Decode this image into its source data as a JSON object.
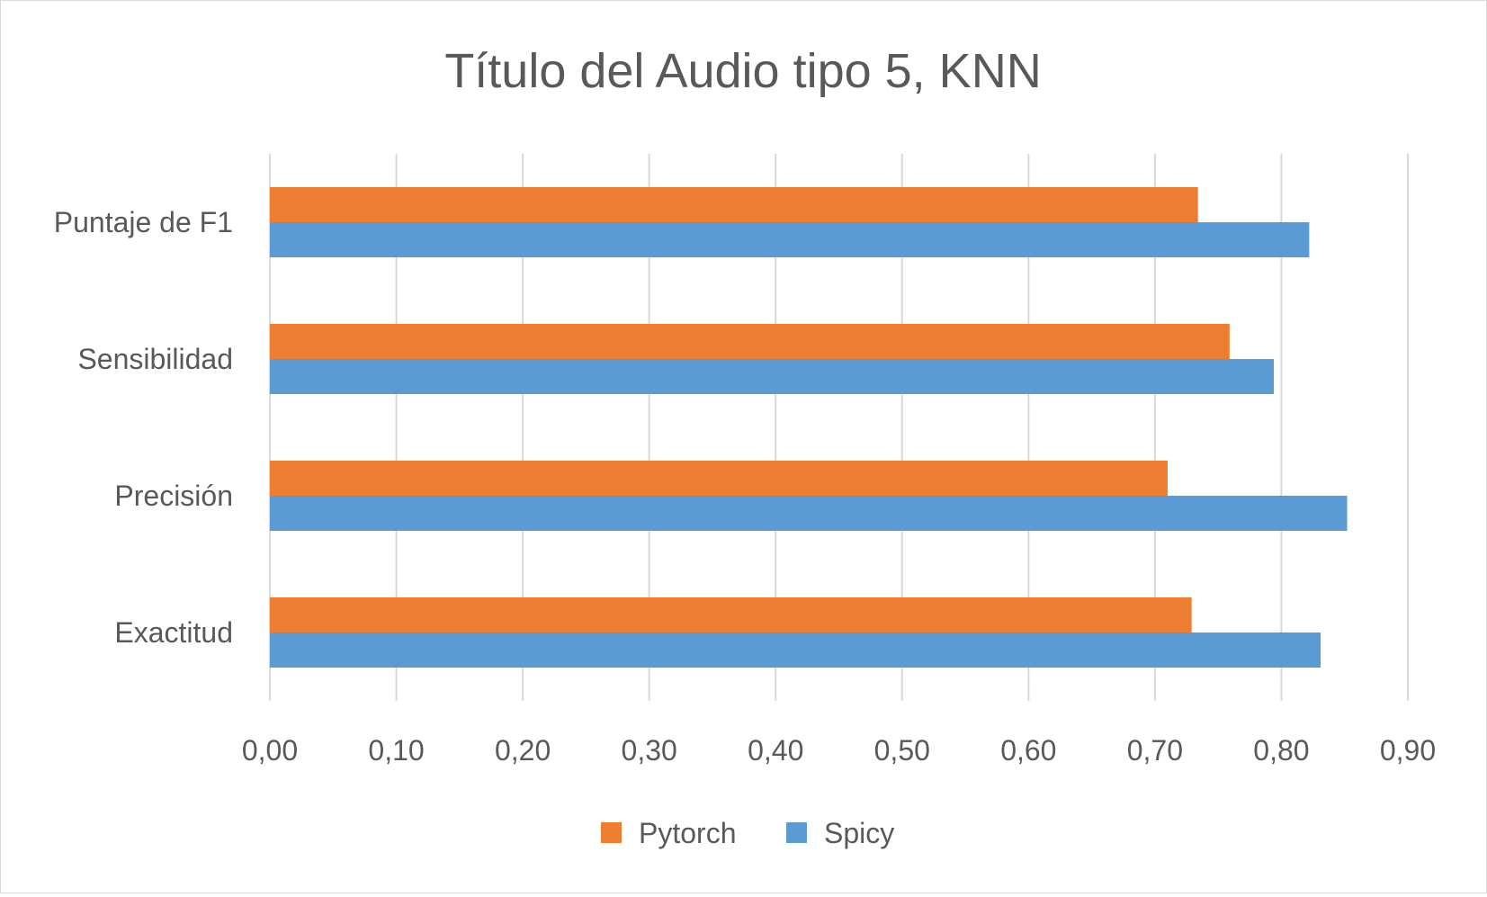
{
  "chart_data": {
    "type": "bar",
    "orientation": "horizontal",
    "title": "Título del Audio tipo 5, KNN",
    "categories": [
      "Puntaje de F1",
      "Sensibilidad",
      "Precisión",
      "Exactitud"
    ],
    "series": [
      {
        "name": "Pytorch",
        "color": "#ed7d31",
        "values": [
          0.734,
          0.759,
          0.71,
          0.729
        ]
      },
      {
        "name": "Spicy",
        "color": "#5b9bd5",
        "values": [
          0.822,
          0.794,
          0.852,
          0.831
        ]
      }
    ],
    "xlim": [
      0,
      0.9
    ],
    "xticks": [
      0,
      0.1,
      0.2,
      0.3,
      0.4,
      0.5,
      0.6,
      0.7,
      0.8,
      0.9
    ],
    "xtick_labels": [
      "0,00",
      "0,10",
      "0,20",
      "0,30",
      "0,40",
      "0,50",
      "0,60",
      "0,70",
      "0,80",
      "0,90"
    ],
    "grid": true,
    "legend": "bottom"
  }
}
